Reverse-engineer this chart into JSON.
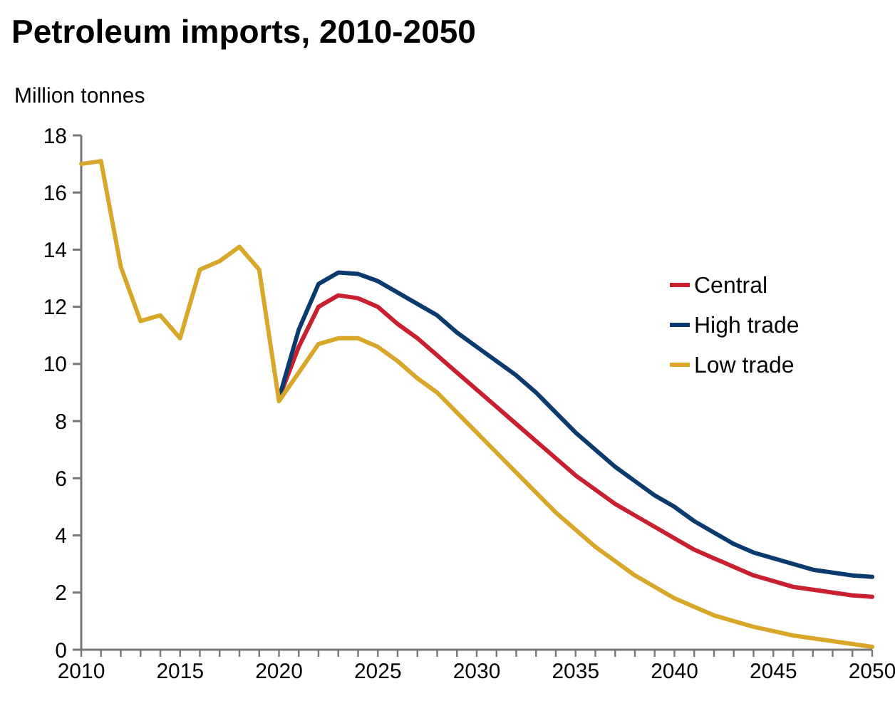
{
  "chart_data": {
    "type": "line",
    "title": "Petroleum imports, 2010-2050",
    "ylabel": "Million tonnes",
    "xlim": [
      2010,
      2050
    ],
    "xticks": [
      2010,
      {
        "value": 2011,
        "label": null
      },
      {
        "value": 2012,
        "label": null
      },
      {
        "value": 2013,
        "label": null
      },
      {
        "value": 2014,
        "label": null
      },
      2015,
      {
        "value": 2016,
        "label": null
      },
      {
        "value": 2017,
        "label": null
      },
      {
        "value": 2018,
        "label": null
      },
      {
        "value": 2019,
        "label": null
      },
      2020,
      {
        "value": 2021,
        "label": null
      },
      {
        "value": 2022,
        "label": null
      },
      {
        "value": 2023,
        "label": null
      },
      {
        "value": 2024,
        "label": null
      },
      2025,
      {
        "value": 2026,
        "label": null
      },
      {
        "value": 2027,
        "label": null
      },
      {
        "value": 2028,
        "label": null
      },
      {
        "value": 2029,
        "label": null
      },
      2030,
      {
        "value": 2031,
        "label": null
      },
      {
        "value": 2032,
        "label": null
      },
      {
        "value": 2033,
        "label": null
      },
      {
        "value": 2034,
        "label": null
      },
      2035,
      {
        "value": 2036,
        "label": null
      },
      {
        "value": 2037,
        "label": null
      },
      {
        "value": 2038,
        "label": null
      },
      {
        "value": 2039,
        "label": null
      },
      2040,
      {
        "value": 2041,
        "label": null
      },
      {
        "value": 2042,
        "label": null
      },
      {
        "value": 2043,
        "label": null
      },
      {
        "value": 2044,
        "label": null
      },
      2045,
      {
        "value": 2046,
        "label": null
      },
      {
        "value": 2047,
        "label": null
      },
      {
        "value": 2048,
        "label": null
      },
      {
        "value": 2049,
        "label": null
      },
      2050
    ],
    "ylim": [
      0,
      18
    ],
    "yticks": [
      0,
      2,
      4,
      6,
      8,
      10,
      12,
      14,
      16,
      18
    ],
    "grid": false,
    "legend": "right",
    "marker": "none",
    "line_style": "solid",
    "series": [
      {
        "name": "Central",
        "color": "#c8202f",
        "x": [
          2020,
          2021,
          2022,
          2023,
          2024,
          2025,
          2026,
          2027,
          2028,
          2029,
          2030,
          2031,
          2032,
          2033,
          2034,
          2035,
          2036,
          2037,
          2038,
          2039,
          2040,
          2041,
          2042,
          2043,
          2044,
          2045,
          2046,
          2047,
          2048,
          2049,
          2050
        ],
        "values": [
          8.8,
          10.6,
          12.0,
          12.4,
          12.3,
          12.0,
          11.4,
          10.9,
          10.3,
          9.7,
          9.1,
          8.5,
          7.9,
          7.3,
          6.7,
          6.1,
          5.6,
          5.1,
          4.7,
          4.3,
          3.9,
          3.5,
          3.2,
          2.9,
          2.6,
          2.4,
          2.2,
          2.1,
          2.0,
          1.9,
          1.85
        ]
      },
      {
        "name": "High trade",
        "color": "#0b3a6e",
        "x": [
          2020,
          2021,
          2022,
          2023,
          2024,
          2025,
          2026,
          2027,
          2028,
          2029,
          2030,
          2031,
          2032,
          2033,
          2034,
          2035,
          2036,
          2037,
          2038,
          2039,
          2040,
          2041,
          2042,
          2043,
          2044,
          2045,
          2046,
          2047,
          2048,
          2049,
          2050
        ],
        "values": [
          8.8,
          11.2,
          12.8,
          13.2,
          13.15,
          12.9,
          12.5,
          12.1,
          11.7,
          11.1,
          10.6,
          10.1,
          9.6,
          9.0,
          8.3,
          7.6,
          7.0,
          6.4,
          5.9,
          5.4,
          5.0,
          4.5,
          4.1,
          3.7,
          3.4,
          3.2,
          3.0,
          2.8,
          2.7,
          2.6,
          2.55
        ]
      },
      {
        "name": "Low trade",
        "color": "#d8a628",
        "x": [
          2010,
          2011,
          2012,
          2013,
          2014,
          2015,
          2016,
          2017,
          2018,
          2019,
          2020,
          2021,
          2022,
          2023,
          2024,
          2025,
          2026,
          2027,
          2028,
          2029,
          2030,
          2031,
          2032,
          2033,
          2034,
          2035,
          2036,
          2037,
          2038,
          2039,
          2040,
          2041,
          2042,
          2043,
          2044,
          2045,
          2046,
          2047,
          2048,
          2049,
          2050
        ],
        "values": [
          17.0,
          17.1,
          13.4,
          11.5,
          11.7,
          10.9,
          13.3,
          13.6,
          14.1,
          13.3,
          8.7,
          9.7,
          10.7,
          10.9,
          10.9,
          10.6,
          10.1,
          9.5,
          9.0,
          8.3,
          7.6,
          6.9,
          6.2,
          5.5,
          4.8,
          4.2,
          3.6,
          3.1,
          2.6,
          2.2,
          1.8,
          1.5,
          1.2,
          1.0,
          0.8,
          0.65,
          0.5,
          0.4,
          0.3,
          0.2,
          0.1
        ]
      }
    ]
  }
}
